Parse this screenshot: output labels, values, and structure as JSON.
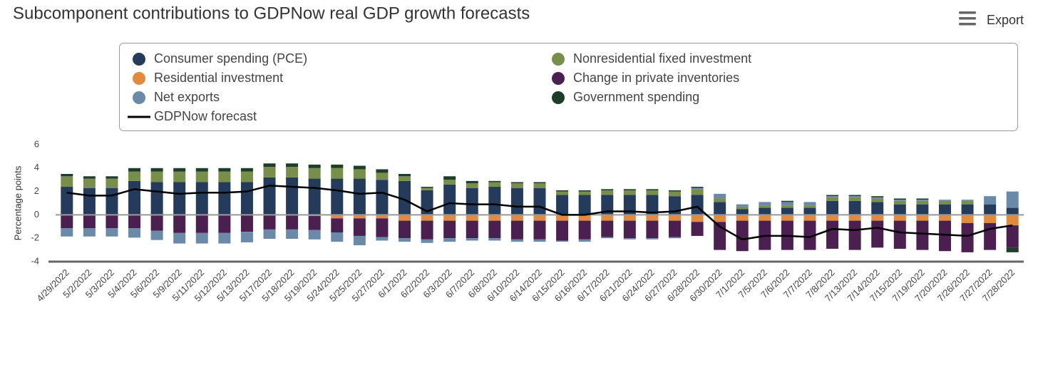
{
  "chart_data": {
    "type": "stacked-bar",
    "title": "Subcomponent contributions to GDPNow real GDP growth forecasts",
    "y_label": "Percentage points",
    "categories": [
      "4/29/2022",
      "5/2/2022",
      "5/3/2022",
      "5/4/2022",
      "5/6/2022",
      "5/9/2022",
      "5/11/2022",
      "5/12/2022",
      "5/13/2022",
      "5/17/2022",
      "5/18/2022",
      "5/19/2022",
      "5/24/2022",
      "5/25/2022",
      "5/27/2022",
      "6/1/2022",
      "6/2/2022",
      "6/3/2022",
      "6/7/2022",
      "6/8/2022",
      "6/10/2022",
      "6/14/2022",
      "6/15/2022",
      "6/16/2022",
      "6/17/2022",
      "6/21/2022",
      "6/24/2022",
      "6/27/2022",
      "6/28/2022",
      "6/30/2022",
      "7/1/2022",
      "7/5/2022",
      "7/6/2022",
      "7/7/2022",
      "7/8/2022",
      "7/13/2022",
      "7/14/2022",
      "7/15/2022",
      "7/19/2022",
      "7/20/2022",
      "7/26/2022",
      "7/27/2022",
      "7/28/2022"
    ],
    "series": [
      {
        "name": "Consumer spending (PCE)",
        "color": "#243b5c",
        "values": [
          2.4,
          2.3,
          2.3,
          2.9,
          2.8,
          2.8,
          2.8,
          2.8,
          2.8,
          3.2,
          3.2,
          3.1,
          3.1,
          3.1,
          3.0,
          2.9,
          2.1,
          2.6,
          2.3,
          2.4,
          2.3,
          2.3,
          1.7,
          1.7,
          1.7,
          1.7,
          1.7,
          1.6,
          1.7,
          1.1,
          0.5,
          0.6,
          0.6,
          0.6,
          1.2,
          1.2,
          1.1,
          0.9,
          0.9,
          0.9,
          0.9,
          0.9,
          0.6
        ]
      },
      {
        "name": "Nonresidential fixed investment",
        "color": "#778f4a",
        "values": [
          0.9,
          0.8,
          0.8,
          0.8,
          0.9,
          0.9,
          0.9,
          0.9,
          0.9,
          0.9,
          0.9,
          0.9,
          0.9,
          0.8,
          0.6,
          0.4,
          0.2,
          0.4,
          0.4,
          0.4,
          0.4,
          0.4,
          0.3,
          0.3,
          0.4,
          0.4,
          0.4,
          0.4,
          0.5,
          0.3,
          0.2,
          0.2,
          0.2,
          0.2,
          0.3,
          0.3,
          0.3,
          0.3,
          0.3,
          0.3,
          0.3,
          0.0,
          0.0
        ]
      },
      {
        "name": "Residential investment",
        "color": "#e08b3e",
        "values": [
          -0.05,
          -0.05,
          -0.05,
          -0.05,
          -0.05,
          -0.05,
          -0.05,
          -0.05,
          -0.05,
          -0.05,
          -0.05,
          -0.1,
          -0.3,
          -0.3,
          -0.3,
          -0.5,
          -0.5,
          -0.5,
          -0.5,
          -0.5,
          -0.5,
          -0.5,
          -0.5,
          -0.5,
          -0.5,
          -0.5,
          -0.5,
          -0.5,
          -0.6,
          -0.6,
          -0.5,
          -0.5,
          -0.5,
          -0.5,
          -0.5,
          -0.5,
          -0.5,
          -0.5,
          -0.5,
          -0.5,
          -0.7,
          -0.7,
          -0.9
        ]
      },
      {
        "name": "Change in private inventories",
        "color": "#4b1f50",
        "values": [
          -1.1,
          -1.1,
          -1.1,
          -1.1,
          -1.3,
          -1.5,
          -1.5,
          -1.5,
          -1.4,
          -1.2,
          -1.2,
          -1.2,
          -1.2,
          -1.5,
          -1.6,
          -1.5,
          -1.6,
          -1.5,
          -1.5,
          -1.5,
          -1.6,
          -1.6,
          -1.7,
          -1.6,
          -1.4,
          -1.5,
          -1.5,
          -1.4,
          -1.2,
          -2.4,
          -2.6,
          -2.5,
          -2.5,
          -2.5,
          -2.4,
          -2.5,
          -2.3,
          -2.4,
          -2.5,
          -2.6,
          -2.5,
          -2.3,
          -1.9
        ]
      },
      {
        "name": "Net exports",
        "color": "#6b8aa9",
        "values": [
          -0.7,
          -0.7,
          -0.7,
          -0.8,
          -0.8,
          -0.9,
          -0.9,
          -0.9,
          -0.9,
          -0.8,
          -0.8,
          -0.8,
          -0.8,
          -0.8,
          -0.3,
          -0.3,
          -0.3,
          -0.3,
          -0.2,
          -0.2,
          -0.2,
          -0.2,
          -0.1,
          -0.2,
          -0.1,
          -0.1,
          -0.1,
          -0.1,
          0.1,
          0.4,
          0.2,
          0.3,
          0.3,
          0.3,
          0.1,
          0.1,
          0.1,
          0.1,
          0.1,
          0.1,
          0.1,
          0.7,
          1.4
        ]
      },
      {
        "name": "Government spending",
        "color": "#1f3d2b",
        "values": [
          0.2,
          0.2,
          0.2,
          0.3,
          0.3,
          0.3,
          0.3,
          0.3,
          0.3,
          0.3,
          0.3,
          0.3,
          0.3,
          0.3,
          0.3,
          0.2,
          0.1,
          0.3,
          0.2,
          0.1,
          0.1,
          0.1,
          0.1,
          0.1,
          0.1,
          0.1,
          0.1,
          0.1,
          0.1,
          0.0,
          0.0,
          0.0,
          0.1,
          0.0,
          0.1,
          0.1,
          0.1,
          0.1,
          0.1,
          0.0,
          0.0,
          0.0,
          -0.4
        ]
      },
      {
        "name": "GDPNow forecast",
        "type": "line",
        "color": "#000000",
        "values": [
          1.9,
          1.65,
          1.65,
          2.2,
          2.0,
          1.8,
          1.9,
          1.9,
          2.0,
          2.5,
          2.4,
          2.3,
          2.1,
          1.8,
          1.9,
          1.3,
          0.3,
          1.0,
          0.9,
          0.9,
          0.7,
          0.7,
          0.0,
          0.0,
          0.3,
          0.3,
          0.2,
          0.3,
          0.7,
          -1.0,
          -2.1,
          -1.8,
          -1.8,
          -1.9,
          -1.2,
          -1.3,
          -1.1,
          -1.5,
          -1.6,
          -1.7,
          -1.8,
          -1.2,
          -0.9
        ]
      }
    ],
    "ylim": [
      -4,
      6
    ],
    "yticks": [
      -4,
      -2,
      0,
      2,
      4,
      6
    ],
    "grid": false,
    "legend": "top"
  },
  "ui": {
    "export_label": "Export"
  }
}
